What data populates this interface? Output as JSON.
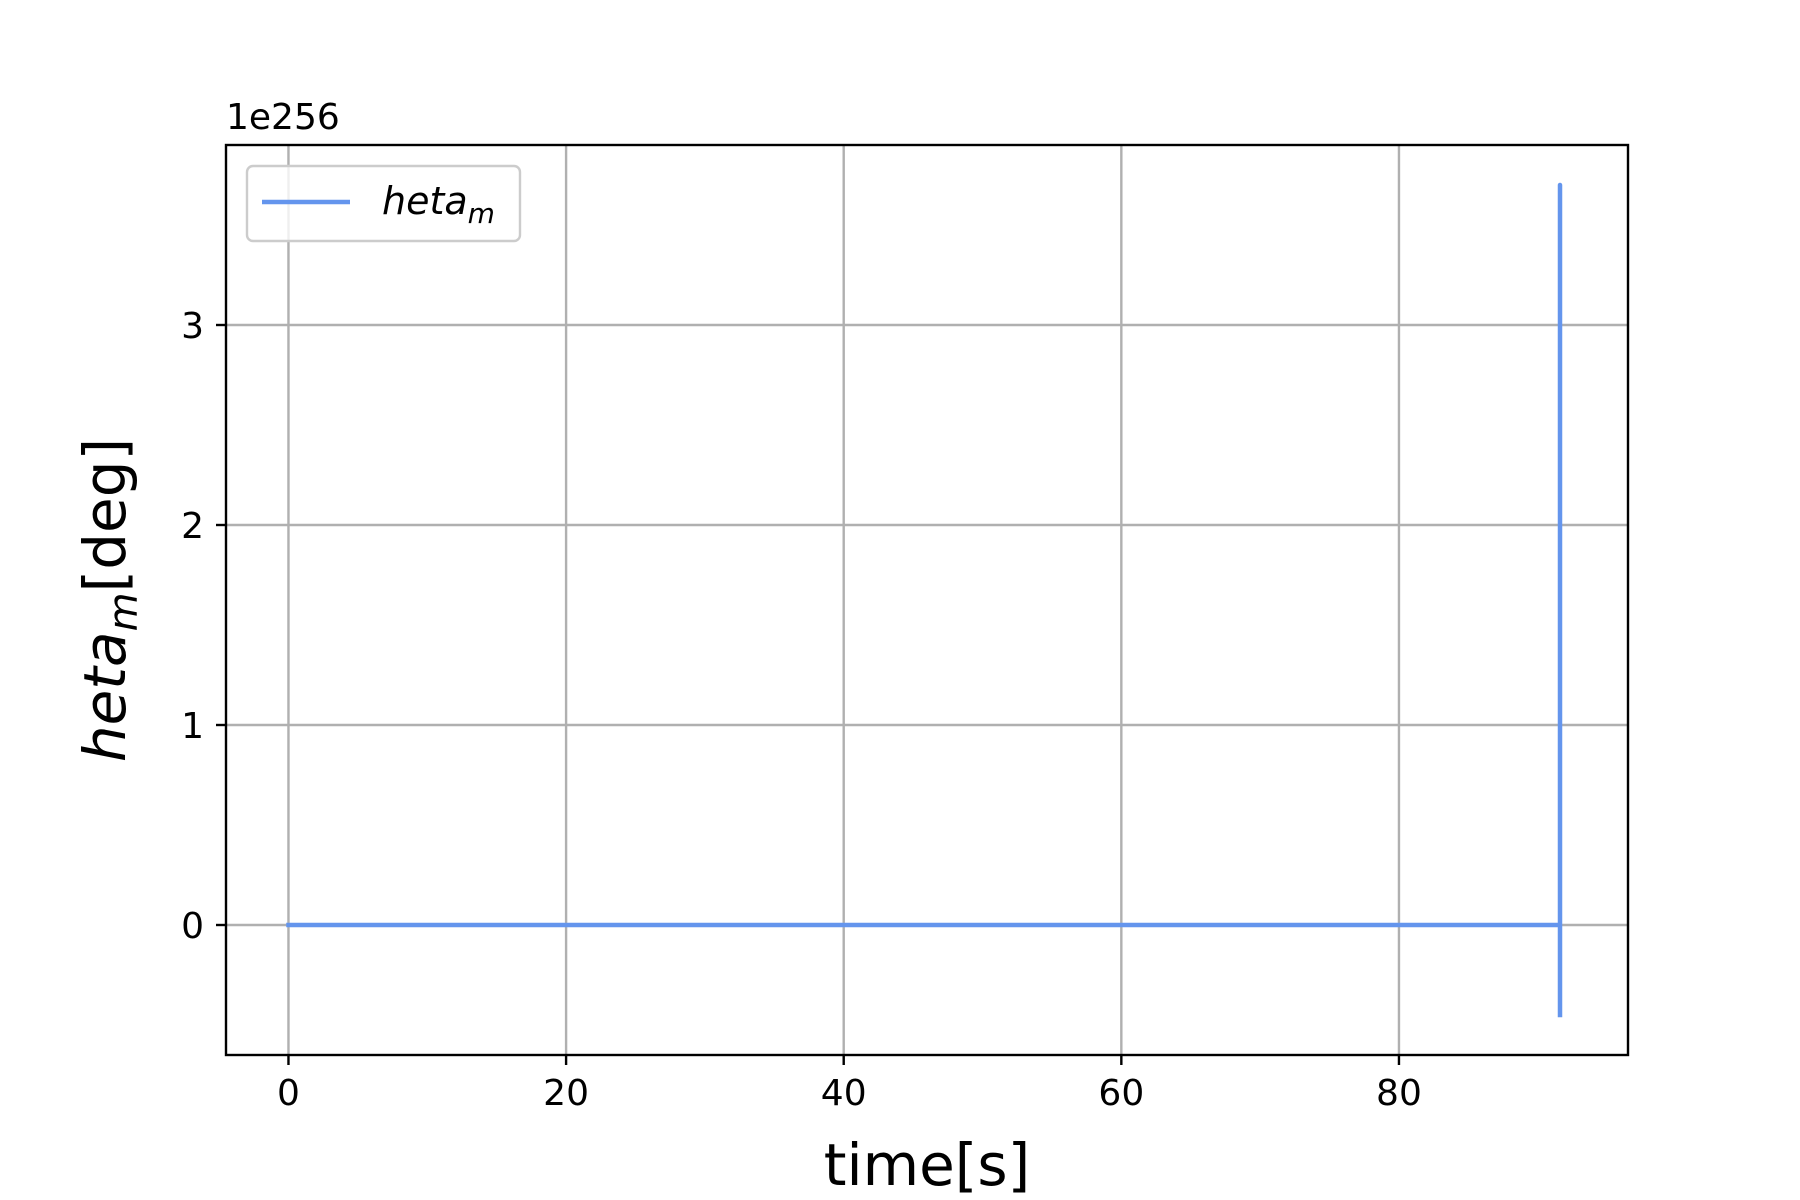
{
  "chart_data": {
    "type": "line",
    "title": "",
    "xlabel": "time[s]",
    "ylabel_base": "heta",
    "ylabel_sub": "m",
    "ylabel_unit": "[deg]",
    "y_offset_label": "1e256",
    "xlim": [
      -4.5,
      96.5
    ],
    "ylim": [
      -0.65,
      3.9
    ],
    "y_scale_note": "values in units of 1e256",
    "x_ticks": [
      0,
      20,
      40,
      60,
      80
    ],
    "x_tick_labels": [
      "0",
      "20",
      "40",
      "60",
      "80"
    ],
    "y_ticks": [
      0,
      1,
      2,
      3
    ],
    "y_tick_labels": [
      "0",
      "1",
      "2",
      "3"
    ],
    "grid": true,
    "legend_position": "top-left",
    "series": [
      {
        "name_base": "heta",
        "name_sub": "m",
        "color": "#6495ED",
        "x": [
          0,
          20,
          40,
          60,
          80,
          91.5,
          91.6,
          91.6,
          91.6
        ],
        "y": [
          0,
          0,
          0,
          0,
          0,
          0,
          0,
          3.7,
          -0.45
        ]
      }
    ]
  }
}
